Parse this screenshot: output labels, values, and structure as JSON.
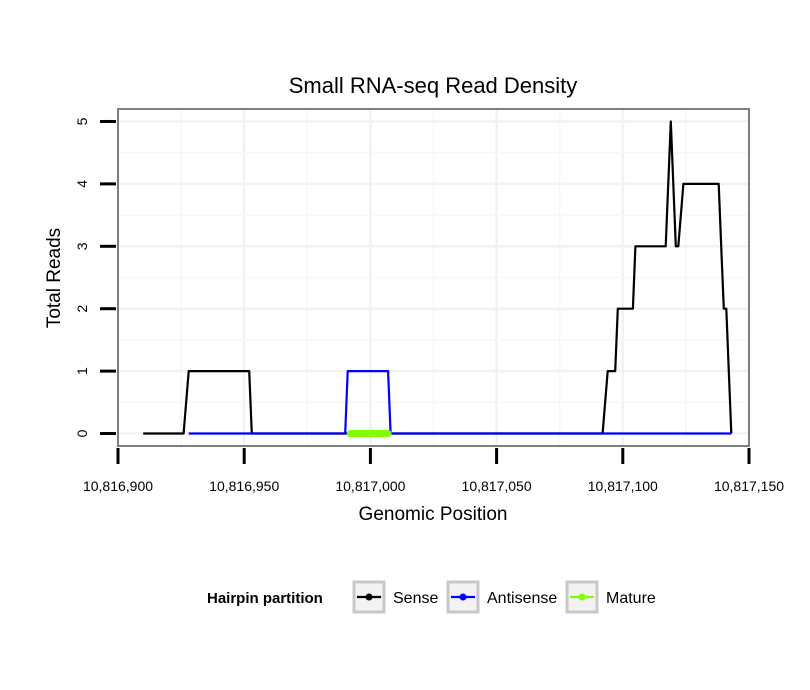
{
  "chart_data": {
    "type": "line",
    "title": "Small RNA-seq Read Density",
    "xlabel": "Genomic Position",
    "ylabel": "Total Reads",
    "xlim": [
      10816900,
      10817150
    ],
    "ylim": [
      -0.2,
      5.2
    ],
    "x_ticks": [
      10816900,
      10816950,
      10817000,
      10817050,
      10817100,
      10817150
    ],
    "x_tick_labels": [
      "10,816,900",
      "10,816,950",
      "10,817,000",
      "10,817,050",
      "10,817,100",
      "10,817,150"
    ],
    "y_ticks": [
      0,
      1,
      2,
      3,
      4,
      5
    ],
    "y_tick_labels": [
      "0",
      "1",
      "2",
      "3",
      "4",
      "5"
    ],
    "grid": true,
    "legend": {
      "title": "Hairpin partition",
      "position": "bottom",
      "entries": [
        "Sense",
        "Antisense",
        "Mature"
      ]
    },
    "series": [
      {
        "name": "Sense",
        "color": "#000000",
        "x": [
          10816910,
          10816926,
          10816928,
          10816952,
          10816953,
          10817092,
          10817094,
          10817097,
          10817098,
          10817101,
          10817104,
          10817105,
          10817108,
          10817117,
          10817119,
          10817121,
          10817122,
          10817124,
          10817138,
          10817139,
          10817140,
          10817141,
          10817143
        ],
        "values": [
          0,
          0,
          1,
          1,
          0,
          0,
          1,
          1,
          2,
          2,
          2,
          3,
          3,
          3,
          5,
          3,
          3,
          4,
          4,
          3,
          2,
          2,
          0
        ]
      },
      {
        "name": "Antisense",
        "color": "#0000ff",
        "x": [
          10816928,
          10816952,
          10816990,
          10816991,
          10817007,
          10817008,
          10817094,
          10817143
        ],
        "values": [
          0,
          0,
          0,
          1,
          1,
          0,
          0,
          0
        ]
      },
      {
        "name": "Mature",
        "color": "#7fff00",
        "x": [
          10816992,
          10817007
        ],
        "values": [
          0,
          0
        ]
      }
    ]
  }
}
